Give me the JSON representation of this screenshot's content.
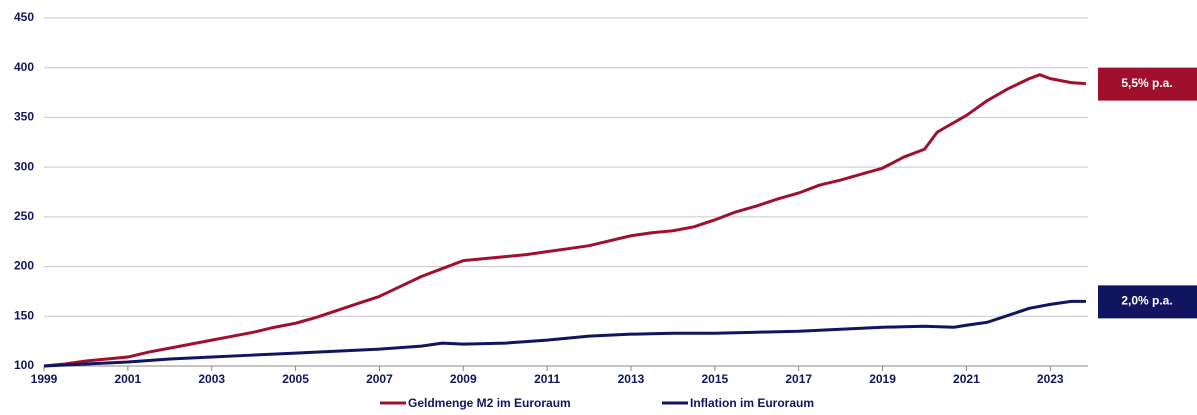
{
  "chart_data": {
    "type": "line",
    "xlim": [
      1999,
      2023.9
    ],
    "xticks": [
      1999,
      2001,
      2003,
      2005,
      2007,
      2009,
      2011,
      2013,
      2015,
      2017,
      2019,
      2021,
      2023
    ],
    "ylim": [
      100,
      450
    ],
    "yticks": [
      100,
      150,
      200,
      250,
      300,
      350,
      400,
      450
    ],
    "grid": true,
    "legend": "bottom",
    "series": [
      {
        "name": "Geldmenge M2 im Euroraum",
        "color": "#a0102e",
        "end_label": "5,5% p.a.",
        "x": [
          1999,
          1999.5,
          2000,
          2000.5,
          2001,
          2001.5,
          2002,
          2002.5,
          2003,
          2003.5,
          2004,
          2004.5,
          2005,
          2005.5,
          2006,
          2006.5,
          2007,
          2007.5,
          2008,
          2008.5,
          2009,
          2009.5,
          2010,
          2010.5,
          2011,
          2011.5,
          2012,
          2012.5,
          2013,
          2013.5,
          2014,
          2014.5,
          2015,
          2015.5,
          2016,
          2016.5,
          2017,
          2017.5,
          2018,
          2018.5,
          2019,
          2019.5,
          2020,
          2020.3,
          2020.5,
          2021,
          2021.5,
          2022,
          2022.5,
          2022.75,
          2023,
          2023.5,
          2023.85
        ],
        "values": [
          100,
          102,
          105,
          107,
          109,
          114,
          118,
          122,
          126,
          130,
          134,
          139,
          143,
          149,
          156,
          163,
          170,
          180,
          190,
          198,
          206,
          208,
          210,
          212,
          215,
          218,
          221,
          226,
          231,
          234,
          236,
          240,
          247,
          255,
          261,
          268,
          274,
          282,
          287,
          293,
          299,
          310,
          318,
          335,
          340,
          352,
          367,
          379,
          389,
          393,
          389,
          385,
          384
        ]
      },
      {
        "name": "Inflation im Euroraum",
        "color": "#111560",
        "end_label": "2,0% p.a.",
        "x": [
          1999,
          2000,
          2001,
          2002,
          2003,
          2004,
          2005,
          2006,
          2007,
          2008,
          2008.5,
          2009,
          2010,
          2011,
          2012,
          2013,
          2014,
          2015,
          2016,
          2017,
          2018,
          2019,
          2020,
          2020.7,
          2021,
          2021.5,
          2022,
          2022.5,
          2023,
          2023.5,
          2023.85
        ],
        "values": [
          100,
          102,
          104,
          107,
          109,
          111,
          113,
          115,
          117,
          120,
          123,
          122,
          123,
          126,
          130,
          132,
          133,
          133,
          134,
          135,
          137,
          139,
          140,
          139,
          141,
          144,
          151,
          158,
          162,
          165,
          165
        ]
      }
    ]
  }
}
